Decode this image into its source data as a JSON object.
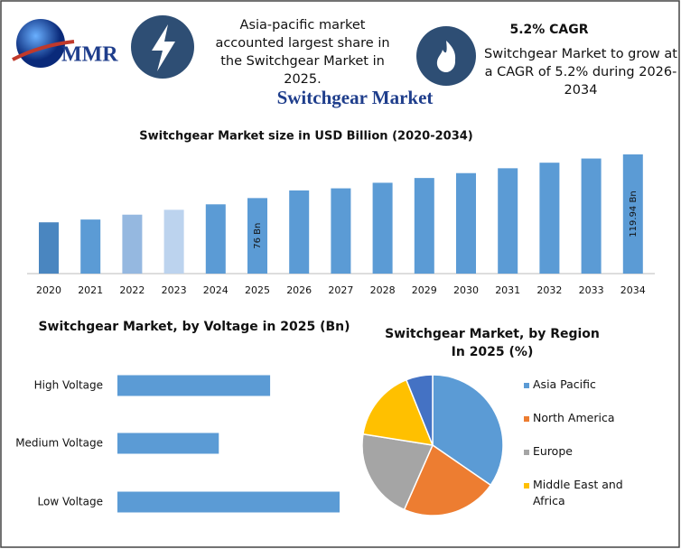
{
  "header": {
    "logo": "MMR",
    "note": "Asia-pacific market accounted largest share in the Switchgear Market in 2025.",
    "cagr_title": "5.2% CAGR",
    "cagr_note": "Switchgear Market to grow at a CAGR of 5.2% during 2026-2034"
  },
  "title": "Switchgear Market",
  "chart_data": [
    {
      "type": "bar",
      "title": "Switchgear Market size in USD Billion (2020-2034)",
      "categories": [
        "2020",
        "2021",
        "2022",
        "2023",
        "2024",
        "2025",
        "2026",
        "2027",
        "2028",
        "2029",
        "2030",
        "2031",
        "2032",
        "2033",
        "2034"
      ],
      "values": [
        51.6,
        54.4,
        59.3,
        64.2,
        69.7,
        76,
        83.7,
        85.8,
        91.4,
        96.2,
        101.1,
        106,
        111.6,
        115.8,
        119.94
      ],
      "value_labels": [
        null,
        null,
        null,
        null,
        null,
        "76 Bn",
        null,
        null,
        null,
        null,
        null,
        null,
        null,
        null,
        "119.94 Bn"
      ],
      "colors": [
        "#4a86c0",
        "#5b9bd5",
        "#95b8e0",
        "#bcd3ee",
        "#5b9bd5",
        "#5b9bd5",
        "#5b9bd5",
        "#5b9bd5",
        "#5b9bd5",
        "#5b9bd5",
        "#5b9bd5",
        "#5b9bd5",
        "#5b9bd5",
        "#5b9bd5",
        "#5b9bd5"
      ]
    },
    {
      "type": "hbar",
      "title": "Switchgear Market, by Voltage in 2025 (Bn)",
      "categories": [
        "High Voltage",
        "Medium Voltage",
        "Low Voltage"
      ],
      "values": [
        24.4,
        16.2,
        35.5
      ],
      "color": "#5b9bd5"
    },
    {
      "type": "pie",
      "title": "Switchgear Market, by Region In 2025 (%)",
      "categories": [
        "Asia Pacific",
        "North America",
        "Europe",
        "Middle East and Africa",
        null
      ],
      "values": [
        34.6,
        22,
        20.9,
        16.4,
        6.1
      ],
      "colors": [
        "#5b9bd5",
        "#ed7d31",
        "#a5a5a5",
        "#ffc000",
        "#4472c4"
      ],
      "legend": "right"
    }
  ]
}
